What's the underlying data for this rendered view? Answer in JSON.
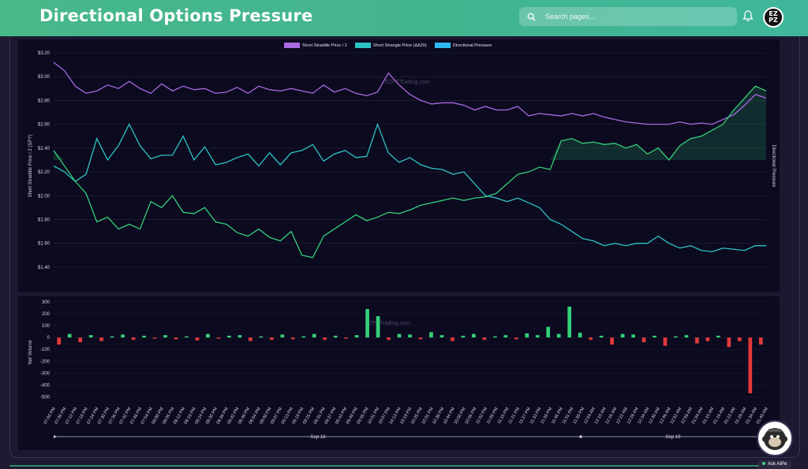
{
  "header": {
    "title": "Directional Options Pressure",
    "search_placeholder": "Search pages...",
    "logo_text_top": "EZ",
    "logo_text_bottom": "PZ"
  },
  "colors": {
    "header_bg": "#46b88a",
    "straddle": "#a86ae0",
    "strangle": "#2ec4c4",
    "pressure": "#2eb8f2",
    "positive": "#35d07a",
    "negative": "#e03a3a"
  },
  "watermark": "EZPZTrading.com",
  "ask_button": "Ask AIPe",
  "chart_data": [
    {
      "type": "line",
      "legend": [
        "Short Straddle Price / 2",
        "Short Strangle Price (ΔΔ20)",
        "Directional Pressure"
      ],
      "ylabel": "Short Straddle Price / 2 (SPY)",
      "y2label": "Directional Pressure",
      "ylim": [
        1.3,
        3.2
      ],
      "yticks": [
        "$3.20",
        "$3.00",
        "$2.80",
        "$2.60",
        "$2.40",
        "$2.20",
        "$2.00",
        "$1.80",
        "$1.60",
        "$1.40"
      ],
      "pressure_baseline": 2.3,
      "grid": true,
      "series": [
        {
          "name": "Short Straddle Price / 2",
          "values": [
            3.12,
            3.05,
            2.92,
            2.86,
            2.88,
            2.93,
            2.9,
            2.96,
            2.9,
            2.86,
            2.94,
            2.88,
            2.92,
            2.89,
            2.9,
            2.86,
            2.87,
            2.91,
            2.86,
            2.92,
            2.89,
            2.88,
            2.9,
            2.88,
            2.86,
            2.93,
            2.87,
            2.9,
            2.86,
            2.84,
            2.87,
            3.03,
            2.93,
            2.85,
            2.8,
            2.77,
            2.78,
            2.78,
            2.76,
            2.72,
            2.75,
            2.72,
            2.72,
            2.75,
            2.67,
            2.69,
            2.68,
            2.67,
            2.69,
            2.67,
            2.69,
            2.66,
            2.64,
            2.62,
            2.61,
            2.6,
            2.6,
            2.6,
            2.62,
            2.6,
            2.61,
            2.6,
            2.64,
            2.68,
            2.76,
            2.85,
            2.82
          ]
        },
        {
          "name": "Short Strangle Price (ΔΔ20)",
          "values": [
            2.25,
            2.2,
            2.12,
            2.18,
            2.48,
            2.3,
            2.42,
            2.6,
            2.42,
            2.31,
            2.34,
            2.34,
            2.5,
            2.3,
            2.41,
            2.26,
            2.28,
            2.32,
            2.35,
            2.25,
            2.36,
            2.26,
            2.36,
            2.38,
            2.43,
            2.29,
            2.35,
            2.38,
            2.32,
            2.33,
            2.6,
            2.36,
            2.28,
            2.32,
            2.26,
            2.23,
            2.22,
            2.18,
            2.2,
            2.1,
            2.0,
            1.98,
            1.95,
            1.98,
            1.94,
            1.9,
            1.8,
            1.76,
            1.7,
            1.64,
            1.62,
            1.58,
            1.6,
            1.58,
            1.6,
            1.6,
            1.66,
            1.6,
            1.56,
            1.58,
            1.54,
            1.53,
            1.56,
            1.55,
            1.54,
            1.58,
            1.58
          ]
        },
        {
          "name": "Directional Pressure",
          "values": [
            2.38,
            2.25,
            2.12,
            2.02,
            1.78,
            1.82,
            1.72,
            1.76,
            1.72,
            1.95,
            1.9,
            2.0,
            1.86,
            1.85,
            1.9,
            1.78,
            1.76,
            1.69,
            1.66,
            1.72,
            1.65,
            1.62,
            1.7,
            1.5,
            1.48,
            1.66,
            1.72,
            1.78,
            1.84,
            1.79,
            1.82,
            1.86,
            1.85,
            1.88,
            1.92,
            1.94,
            1.96,
            1.98,
            1.96,
            1.98,
            1.99,
            2.02,
            2.1,
            2.18,
            2.2,
            2.24,
            2.22,
            2.46,
            2.48,
            2.44,
            2.45,
            2.43,
            2.44,
            2.4,
            2.43,
            2.35,
            2.4,
            2.3,
            2.42,
            2.48,
            2.5,
            2.55,
            2.6,
            2.72,
            2.82,
            2.92,
            2.88
          ]
        }
      ]
    },
    {
      "type": "bar",
      "ylabel": "Net Volume",
      "ylim": [
        -550,
        300
      ],
      "yticks": [
        "300",
        "200",
        "100",
        "0",
        "-100",
        "-200",
        "-300",
        "-400",
        "-500"
      ],
      "categories": [
        "07:00 PM",
        "07:06 PM",
        "07:12 PM",
        "07:18 PM",
        "07:24 PM",
        "07:30 PM",
        "07:36 PM",
        "07:42 PM",
        "07:48 PM",
        "07:54 PM",
        "08:00 PM",
        "08:06 PM",
        "08:12 PM",
        "08:18 PM",
        "08:24 PM",
        "08:30 PM",
        "08:36 PM",
        "08:42 PM",
        "08:48 PM",
        "08:54 PM",
        "09:00 PM",
        "09:07 PM",
        "09:13 PM",
        "09:19 PM",
        "09:25 PM",
        "09:31 PM",
        "09:37 PM",
        "09:43 PM",
        "09:49 PM",
        "09:55 PM",
        "10:01 PM",
        "10:07 PM",
        "10:13 PM",
        "10:19 PM",
        "10:25 PM",
        "10:31 PM",
        "10:38 PM",
        "10:44 PM",
        "10:50 PM",
        "10:56 PM",
        "11:02 PM",
        "11:09 PM",
        "11:15 PM",
        "11:21 PM",
        "11:27 PM",
        "11:33 PM",
        "11:39 PM",
        "11:45 PM",
        "11:51 PM",
        "11:58 PM",
        "12:04 AM",
        "12:10 AM",
        "12:16 AM",
        "12:22 AM",
        "12:28 AM",
        "12:34 AM",
        "12:40 AM",
        "12:46 AM",
        "12:52 AM",
        "12:58 AM",
        "01:04 AM",
        "01:10 AM",
        "01:16 AM",
        "01:22 AM",
        "01:28 AM",
        "01:34 AM",
        "01:40 AM"
      ],
      "values": [
        -60,
        30,
        -40,
        20,
        -30,
        10,
        25,
        -20,
        15,
        -10,
        20,
        -15,
        10,
        -25,
        30,
        -10,
        15,
        20,
        -30,
        10,
        -20,
        25,
        -15,
        10,
        30,
        -20,
        15,
        -10,
        20,
        240,
        180,
        -20,
        30,
        25,
        -15,
        45,
        20,
        -30,
        15,
        30,
        -20,
        10,
        20,
        -15,
        35,
        20,
        90,
        30,
        260,
        40,
        -20,
        15,
        -60,
        30,
        25,
        -40,
        15,
        -70,
        10,
        20,
        -50,
        -30,
        15,
        -80,
        -30,
        -470,
        -60
      ],
      "date_labels": [
        "Sep 18",
        "Sep 19"
      ]
    }
  ]
}
